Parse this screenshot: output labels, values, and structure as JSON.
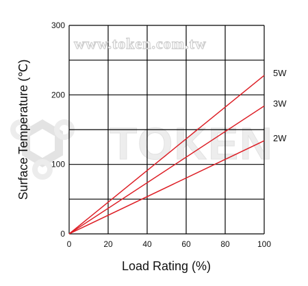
{
  "watermark": {
    "url_text": "www.token.com.tw",
    "brand_text": "TOKEN"
  },
  "chart_data": {
    "type": "line",
    "xlabel": "Load Rating (%)",
    "ylabel": "Surface Temperature (℃)",
    "xlim": [
      0,
      100
    ],
    "ylim": [
      0,
      300
    ],
    "xticks": [
      "0",
      "20",
      "40",
      "60",
      "80",
      "100"
    ],
    "yticks": [
      "0",
      "100",
      "200",
      "300"
    ],
    "x_gridlines": [
      0,
      20,
      40,
      60,
      80,
      100
    ],
    "y_gridlines": [
      0,
      50,
      100,
      150,
      200,
      250,
      300
    ],
    "grid": true,
    "line_color": "#dd1f26",
    "series": [
      {
        "name": "5W",
        "x": [
          0,
          100
        ],
        "y": [
          0,
          228
        ]
      },
      {
        "name": "3W",
        "x": [
          0,
          100
        ],
        "y": [
          0,
          184
        ]
      },
      {
        "name": "2W",
        "x": [
          0,
          100
        ],
        "y": [
          0,
          134
        ]
      }
    ]
  }
}
